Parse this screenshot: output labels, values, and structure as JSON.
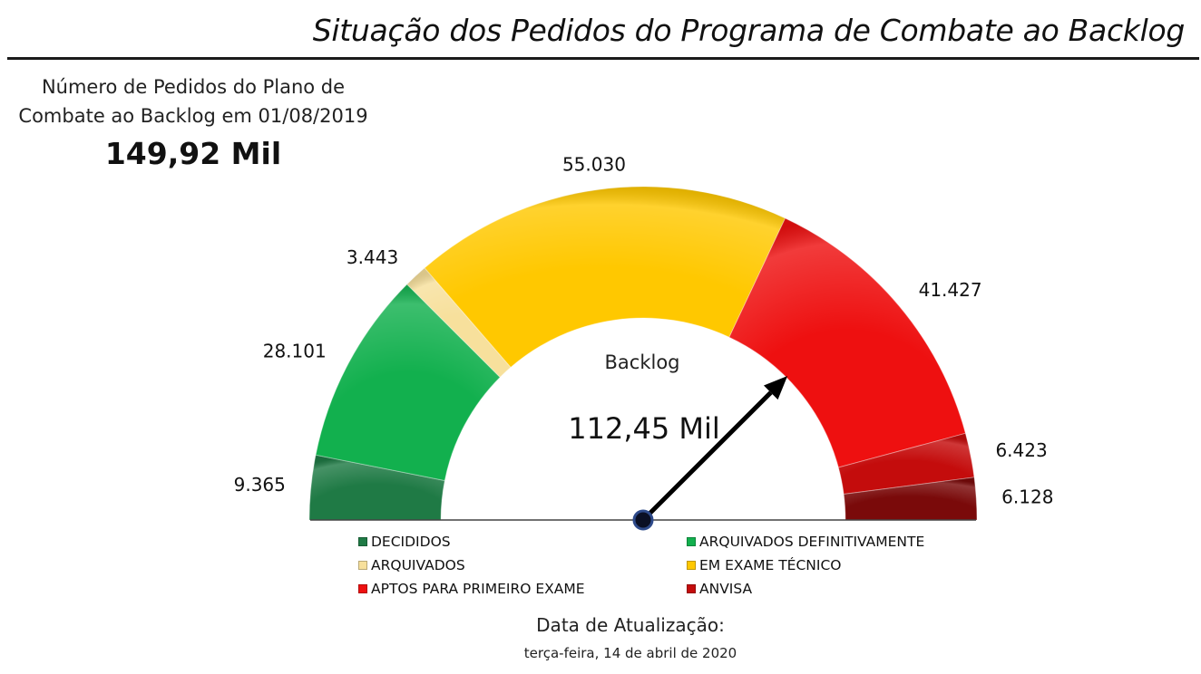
{
  "header": {
    "title": "Situação dos Pedidos do Programa de Combate ao Backlog"
  },
  "plan": {
    "label": "Número de Pedidos do Plano de Combate ao Backlog em 01/08/2019",
    "value": "149,92 Mil"
  },
  "chart_data": {
    "type": "gauge",
    "title": "Backlog",
    "center_value_label": "112,45 Mil",
    "needle_value": 112450,
    "total": 149917,
    "segments": [
      {
        "name": "DECIDIDOS",
        "value": 9365,
        "label": "9.365",
        "color": "#1f7a45"
      },
      {
        "name": "ARQUIVADOS DEFINITIVAMENTE",
        "value": 28101,
        "label": "28.101",
        "color": "#12b04e"
      },
      {
        "name": "ARQUIVADOS",
        "value": 3443,
        "label": "3.443",
        "color": "#f7e09c"
      },
      {
        "name": "EM EXAME TÉCNICO",
        "value": 55030,
        "label": "55.030",
        "color": "#ffc800"
      },
      {
        "name": "APTOS PARA PRIMEIRO EXAME",
        "value": 41427,
        "label": "41.427",
        "color": "#ee1010"
      },
      {
        "name": "ANVISA",
        "value": 6423,
        "label": "6.423",
        "color": "#c40c0c"
      },
      {
        "name": "",
        "value": 6128,
        "label": "6.128",
        "color": "#7a0a0a"
      }
    ]
  },
  "legend": {
    "items": [
      {
        "label": "DECIDIDOS",
        "color": "#1f7a45"
      },
      {
        "label": "ARQUIVADOS DEFINITIVAMENTE",
        "color": "#12b04e"
      },
      {
        "label": "ARQUIVADOS",
        "color": "#f7e09c"
      },
      {
        "label": "EM EXAME TÉCNICO",
        "color": "#ffc800"
      },
      {
        "label": "APTOS PARA PRIMEIRO EXAME",
        "color": "#ee1010"
      },
      {
        "label": "ANVISA",
        "color": "#c40c0c"
      }
    ]
  },
  "update": {
    "label": "Data de Atualização:",
    "date": "terça-feira, 14 de abril de 2020"
  }
}
